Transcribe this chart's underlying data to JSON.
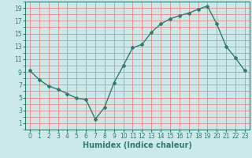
{
  "x": [
    0,
    1,
    2,
    3,
    4,
    5,
    6,
    7,
    8,
    9,
    10,
    11,
    12,
    13,
    14,
    15,
    16,
    17,
    18,
    19,
    20,
    21,
    22,
    23
  ],
  "y": [
    9.2,
    7.8,
    6.8,
    6.3,
    5.6,
    4.9,
    4.7,
    1.6,
    3.5,
    7.3,
    10.0,
    12.8,
    13.3,
    15.2,
    16.5,
    17.3,
    17.8,
    18.2,
    18.8,
    19.3,
    16.5,
    13.0,
    11.2,
    9.2
  ],
  "line_color": "#2e7d6e",
  "bg_color": "#cce8e8",
  "grid_color": "#ee8888",
  "xlabel": "Humidex (Indice chaleur)",
  "xlabel_fontsize": 7,
  "xlim": [
    -0.5,
    23.5
  ],
  "ylim": [
    0,
    20
  ],
  "yticks": [
    1,
    3,
    5,
    7,
    9,
    11,
    13,
    15,
    17,
    19
  ],
  "xticks": [
    0,
    1,
    2,
    3,
    4,
    5,
    6,
    7,
    8,
    9,
    10,
    11,
    12,
    13,
    14,
    15,
    16,
    17,
    18,
    19,
    20,
    21,
    22,
    23
  ],
  "tick_fontsize": 5.5,
  "marker": "D",
  "marker_size": 2.0,
  "line_width": 1.0
}
